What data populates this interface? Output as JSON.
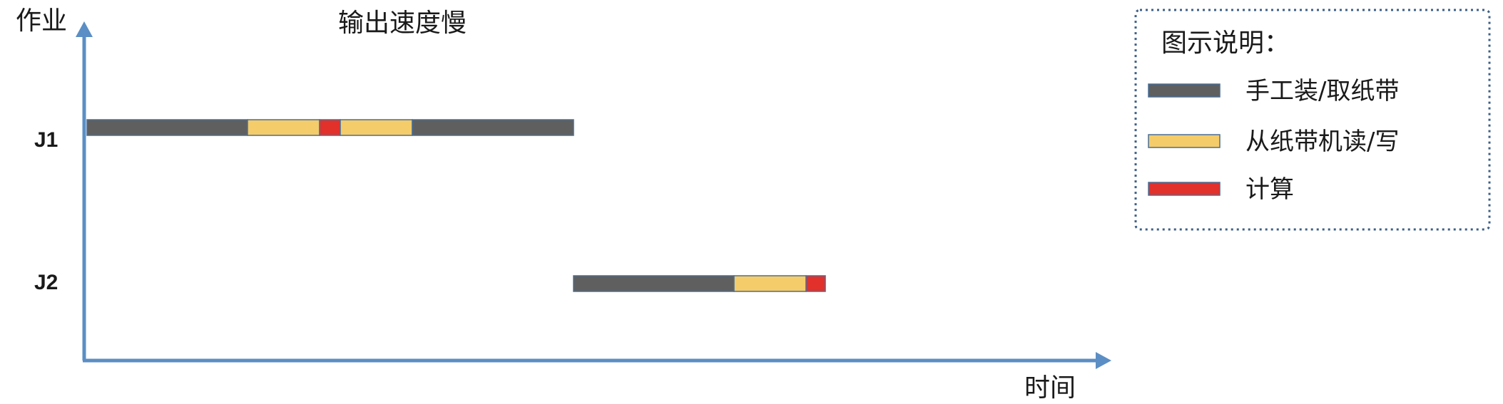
{
  "title": "输出速度慢",
  "y_axis_label": "作业",
  "x_axis_label": "时间",
  "colors": {
    "axis": "#5b8ec4",
    "manual": "#5f5f5f",
    "tape": "#f5cc6a",
    "compute": "#e2302b",
    "legend_border": "#3d5f85"
  },
  "jobs": [
    {
      "label": "J1",
      "segments": [
        {
          "type": "manual",
          "start": 0,
          "end": 225
        },
        {
          "type": "tape",
          "start": 225,
          "end": 326
        },
        {
          "type": "compute",
          "start": 326,
          "end": 355
        },
        {
          "type": "tape",
          "start": 355,
          "end": 456
        },
        {
          "type": "manual",
          "start": 456,
          "end": 682
        }
      ]
    },
    {
      "label": "J2",
      "segments": [
        {
          "type": "manual",
          "start": 682,
          "end": 907
        },
        {
          "type": "tape",
          "start": 907,
          "end": 1008
        },
        {
          "type": "compute",
          "start": 1008,
          "end": 1035
        }
      ]
    }
  ],
  "legend": {
    "title": "图示说明：",
    "items": [
      {
        "type": "manual",
        "label": "手工装/取纸带"
      },
      {
        "type": "tape",
        "label": "从纸带机读/写"
      },
      {
        "type": "compute",
        "label": "计算"
      }
    ]
  }
}
